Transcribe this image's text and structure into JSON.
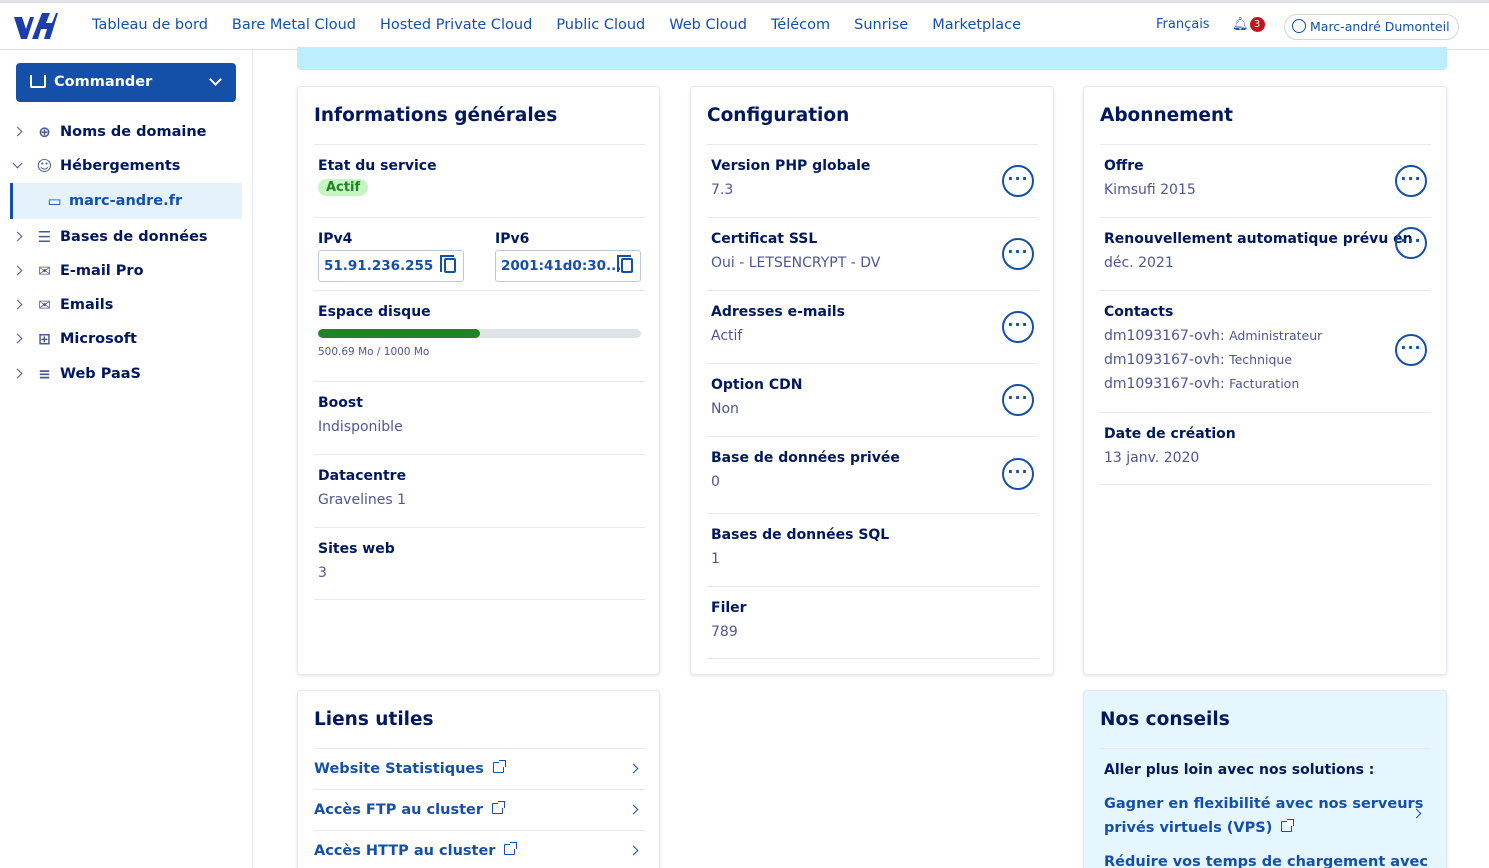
{
  "header": {
    "nav": [
      "Tableau de bord",
      "Bare Metal Cloud",
      "Hosted Private Cloud",
      "Public Cloud",
      "Web Cloud",
      "Télécom",
      "Sunrise",
      "Marketplace"
    ],
    "active_nav": "Web Cloud",
    "language": "Français",
    "notifications_count": "3",
    "user_name": "Marc-andré Dumonteil"
  },
  "sidebar": {
    "order_button": "Commander",
    "items": [
      {
        "label": "Noms de domaine",
        "icon": "globe-icon"
      },
      {
        "label": "Hébergements",
        "icon": "people-icon"
      },
      {
        "label": "marc-andre.fr",
        "icon": "server-icon"
      },
      {
        "label": "Bases de données",
        "icon": "database-icon"
      },
      {
        "label": "E-mail Pro",
        "icon": "envelope-icon"
      },
      {
        "label": "Emails",
        "icon": "envelope-icon"
      },
      {
        "label": "Microsoft",
        "icon": "windows-icon"
      },
      {
        "label": "Web PaaS",
        "icon": "stack-icon"
      }
    ]
  },
  "general": {
    "title": "Informations générales",
    "service_state_label": "Etat du service",
    "service_state_value": "Actif",
    "ipv4_label": "IPv4",
    "ipv4_value": "51.91.236.255",
    "ipv6_label": "IPv6",
    "ipv6_value": "2001:41d0:30...",
    "disk_label": "Espace disque",
    "disk_used_fraction": 0.5007,
    "disk_text": "500.69 Mo / 1000 Mo",
    "boost_label": "Boost",
    "boost_value": "Indisponible",
    "datacenter_label": "Datacentre",
    "datacenter_value": "Gravelines 1",
    "sites_label": "Sites web",
    "sites_value": "3"
  },
  "config": {
    "title": "Configuration",
    "rows": [
      {
        "label": "Version PHP globale",
        "value": "7.3"
      },
      {
        "label": "Certificat SSL",
        "value": "Oui - LETSENCRYPT - DV"
      },
      {
        "label": "Adresses e-mails",
        "value": "Actif"
      },
      {
        "label": "Option CDN",
        "value": "Non"
      },
      {
        "label": "Base de données privée",
        "value": "0"
      },
      {
        "label": "Bases de données SQL",
        "value": "1"
      },
      {
        "label": "Filer",
        "value": "789"
      }
    ]
  },
  "subscription": {
    "title": "Abonnement",
    "offer_label": "Offre",
    "offer_value": "Kimsufi 2015",
    "renewal_label_1": "Renouvellement automatique prévu en",
    "renewal_value": "déc. 2021",
    "contacts_label": "Contacts",
    "contacts": [
      {
        "id": "dm1093167-ovh:",
        "role": "Administrateur"
      },
      {
        "id": "dm1093167-ovh:",
        "role": "Technique"
      },
      {
        "id": "dm1093167-ovh:",
        "role": "Facturation"
      }
    ],
    "creation_label": "Date de création",
    "creation_value": "13 janv. 2020"
  },
  "links": {
    "title": "Liens utiles",
    "items": [
      "Website Statistiques",
      "Accès FTP au cluster",
      "Accès HTTP au cluster"
    ]
  },
  "advice": {
    "title": "Nos conseils",
    "subtitle": "Aller plus loin avec nos solutions :",
    "link1_line1": "Gagner en flexibilité avec nos serveurs",
    "link1_line2": "privés virtuels (VPS)",
    "link2_line1": "Réduire vos temps de chargement avec"
  }
}
